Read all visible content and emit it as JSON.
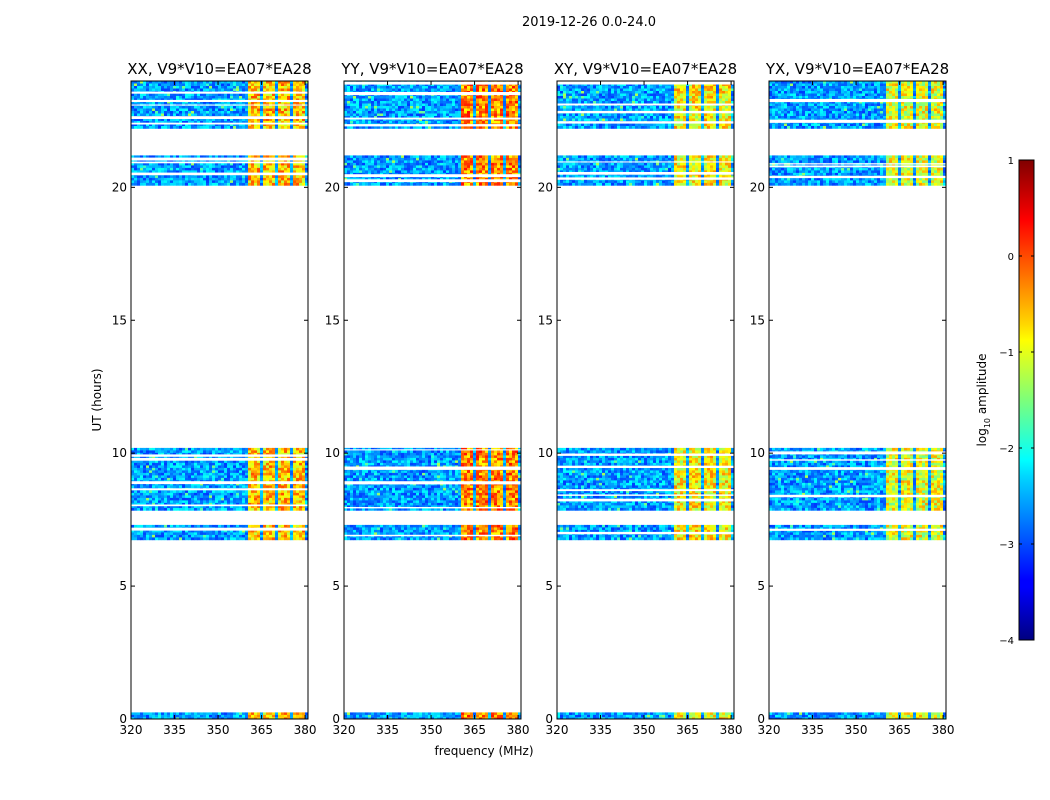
{
  "chart_data": {
    "type": "heatmap",
    "suptitle": "2019-12-26 0.0-24.0",
    "panels": [
      {
        "title": "XX, V9*V10=EA07*EA28"
      },
      {
        "title": "YY, V9*V10=EA07*EA28"
      },
      {
        "title": "XY, V9*V10=EA07*EA28"
      },
      {
        "title": "YX, V9*V10=EA07*EA28"
      }
    ],
    "xlabel": "frequency (MHz)",
    "ylabel": "UT (hours)",
    "xlim": [
      320,
      381
    ],
    "ylim": [
      0,
      24
    ],
    "xticks": [
      320,
      335,
      350,
      365,
      380
    ],
    "yticks": [
      0,
      5,
      10,
      15,
      20
    ],
    "colorbar": {
      "label": "log10 amplitude",
      "label_base": "log",
      "label_sub": "10",
      "label_rest": " amplitude",
      "range": [
        -4,
        1
      ],
      "ticks": [
        -4,
        -3,
        -2,
        -1,
        0,
        1
      ],
      "tick_labels": [
        "−4",
        "−3",
        "−2",
        "−1",
        "0",
        "1"
      ],
      "colormap": "jet"
    },
    "data_time_bands_hours": [
      [
        0.0,
        0.25
      ],
      [
        6.8,
        7.3
      ],
      [
        7.9,
        10.2
      ],
      [
        20.1,
        21.2
      ],
      [
        22.3,
        24.0
      ]
    ],
    "bright_frequency_band_mhz": [
      359,
      379
    ],
    "colors": {
      "axis": "#000000",
      "background": "#ffffff"
    }
  }
}
